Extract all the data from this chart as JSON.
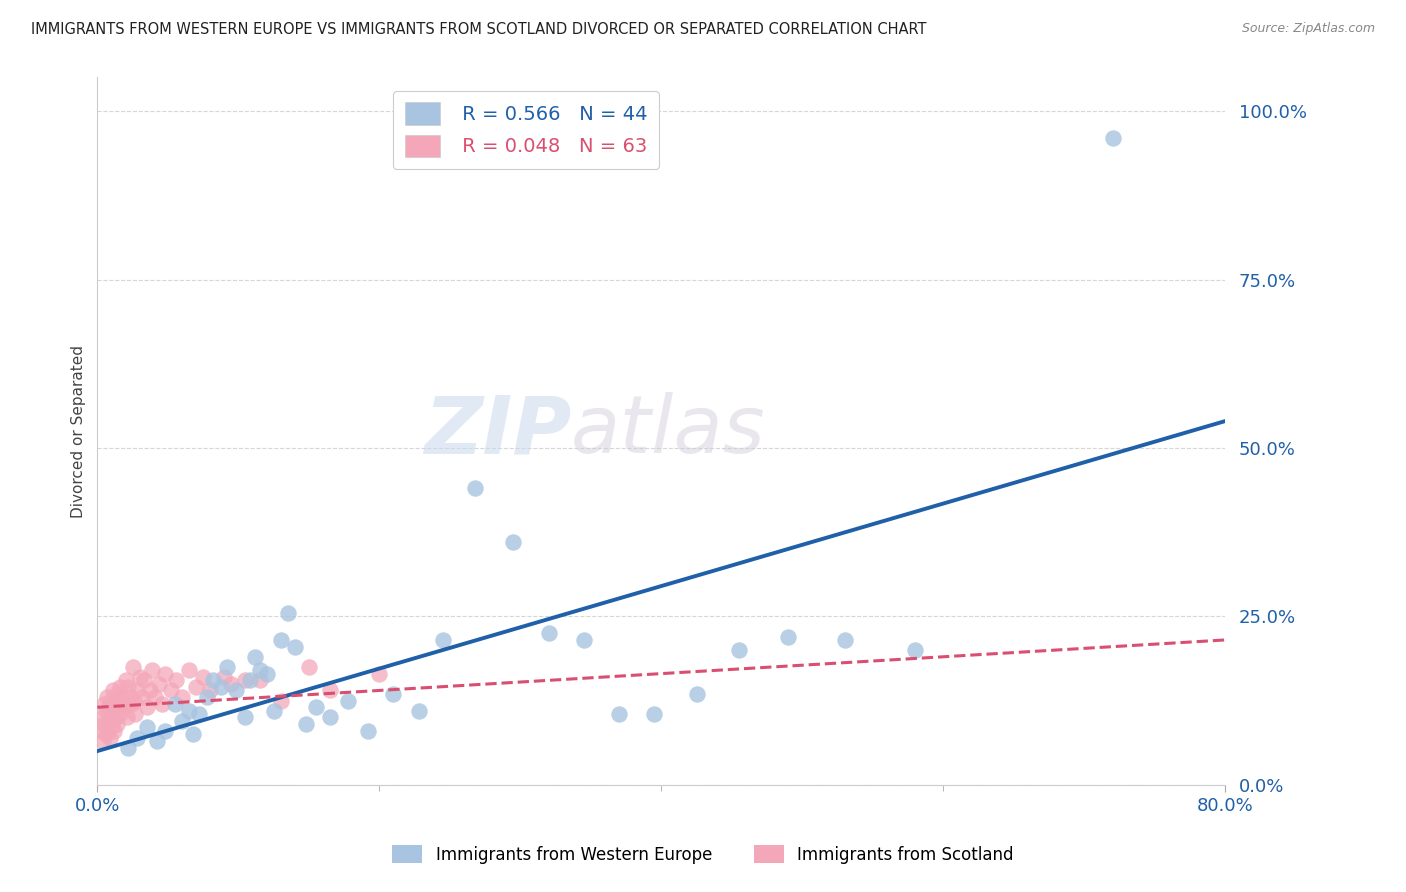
{
  "title": "IMMIGRANTS FROM WESTERN EUROPE VS IMMIGRANTS FROM SCOTLAND DIVORCED OR SEPARATED CORRELATION CHART",
  "source": "Source: ZipAtlas.com",
  "ylabel_label": "Divorced or Separated",
  "x_range": [
    0.0,
    0.8
  ],
  "y_range": [
    0.0,
    1.05
  ],
  "blue_R": 0.566,
  "blue_N": 44,
  "pink_R": 0.048,
  "pink_N": 63,
  "blue_color": "#a8c4e0",
  "blue_line_color": "#2060a8",
  "pink_color": "#f4a7b9",
  "pink_line_color": "#d94f70",
  "legend_label_blue": "Immigrants from Western Europe",
  "legend_label_pink": "Immigrants from Scotland",
  "watermark_zip": "ZIP",
  "watermark_atlas": "atlas",
  "blue_scatter_x": [
    0.022,
    0.028,
    0.035,
    0.042,
    0.048,
    0.055,
    0.06,
    0.065,
    0.068,
    0.072,
    0.078,
    0.082,
    0.088,
    0.092,
    0.098,
    0.105,
    0.108,
    0.112,
    0.115,
    0.12,
    0.125,
    0.13,
    0.135,
    0.14,
    0.148,
    0.155,
    0.165,
    0.178,
    0.192,
    0.21,
    0.228,
    0.245,
    0.268,
    0.295,
    0.32,
    0.345,
    0.37,
    0.395,
    0.425,
    0.455,
    0.49,
    0.53,
    0.58,
    0.72
  ],
  "blue_scatter_y": [
    0.055,
    0.07,
    0.085,
    0.065,
    0.08,
    0.12,
    0.095,
    0.11,
    0.075,
    0.105,
    0.13,
    0.155,
    0.145,
    0.175,
    0.14,
    0.1,
    0.155,
    0.19,
    0.17,
    0.165,
    0.11,
    0.215,
    0.255,
    0.205,
    0.09,
    0.115,
    0.1,
    0.125,
    0.08,
    0.135,
    0.11,
    0.215,
    0.44,
    0.36,
    0.225,
    0.215,
    0.105,
    0.105,
    0.135,
    0.2,
    0.22,
    0.215,
    0.2,
    0.96
  ],
  "pink_scatter_x": [
    0.003,
    0.004,
    0.004,
    0.005,
    0.005,
    0.006,
    0.006,
    0.007,
    0.007,
    0.008,
    0.008,
    0.009,
    0.009,
    0.01,
    0.01,
    0.011,
    0.011,
    0.012,
    0.012,
    0.013,
    0.013,
    0.014,
    0.014,
    0.015,
    0.016,
    0.016,
    0.017,
    0.018,
    0.019,
    0.02,
    0.021,
    0.022,
    0.023,
    0.024,
    0.025,
    0.026,
    0.027,
    0.028,
    0.03,
    0.032,
    0.033,
    0.035,
    0.037,
    0.039,
    0.041,
    0.044,
    0.046,
    0.048,
    0.052,
    0.056,
    0.06,
    0.065,
    0.07,
    0.075,
    0.08,
    0.09,
    0.095,
    0.105,
    0.115,
    0.13,
    0.15,
    0.165,
    0.2
  ],
  "pink_scatter_y": [
    0.08,
    0.065,
    0.1,
    0.09,
    0.12,
    0.075,
    0.11,
    0.085,
    0.13,
    0.095,
    0.115,
    0.07,
    0.1,
    0.085,
    0.125,
    0.095,
    0.14,
    0.11,
    0.08,
    0.12,
    0.1,
    0.135,
    0.09,
    0.115,
    0.145,
    0.105,
    0.13,
    0.12,
    0.115,
    0.155,
    0.1,
    0.145,
    0.13,
    0.12,
    0.175,
    0.125,
    0.105,
    0.14,
    0.16,
    0.13,
    0.155,
    0.115,
    0.14,
    0.17,
    0.13,
    0.15,
    0.12,
    0.165,
    0.14,
    0.155,
    0.13,
    0.17,
    0.145,
    0.16,
    0.14,
    0.16,
    0.15,
    0.155,
    0.155,
    0.125,
    0.175,
    0.14,
    0.165
  ],
  "blue_line_x0": 0.0,
  "blue_line_y0": 0.05,
  "blue_line_x1": 0.8,
  "blue_line_y1": 0.54,
  "pink_line_x0": 0.0,
  "pink_line_y0": 0.115,
  "pink_line_x1": 0.8,
  "pink_line_y1": 0.215
}
